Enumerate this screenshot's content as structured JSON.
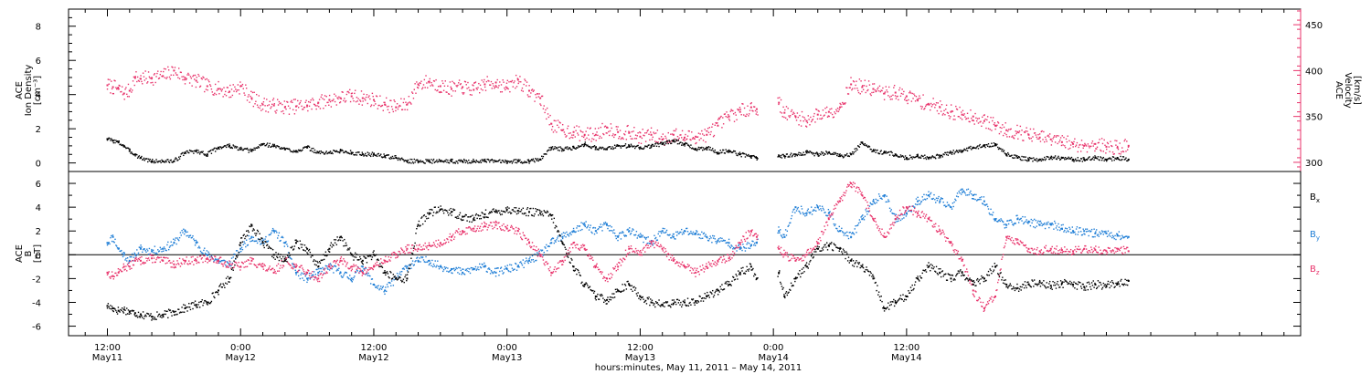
{
  "chart_data": [
    {
      "type": "scatter",
      "panel": "top",
      "ylabel_lines": [
        "ACE",
        "Ion Density",
        "[cm⁻³]"
      ],
      "ylim": [
        -0.5,
        9.0
      ],
      "yticks": [
        0,
        2,
        4,
        6,
        8
      ],
      "right_axis": {
        "ylabel_lines": [
          "ACE",
          "Velocity",
          "[km/s]"
        ],
        "ylim": [
          290,
          467
        ],
        "yticks": [
          300,
          350,
          400,
          450
        ],
        "color": "#e8336b"
      },
      "series": [
        {
          "name": "Ion Density",
          "axis": "left",
          "color": "#000000",
          "x": [
            0.0,
            0.5,
            1.0,
            1.5,
            2.0,
            2.5,
            3.0,
            4.0,
            5.0,
            6.0,
            7.0,
            8.0,
            9.0,
            10.0,
            11.0,
            12.0,
            13.0,
            14.0,
            15.0,
            16.0,
            17.0,
            18.0,
            19.0,
            20.0,
            21.0,
            22.0,
            23.0,
            24.0,
            25.0,
            26.0,
            27.0,
            28.0,
            29.0,
            30.0,
            31.0,
            32.0,
            33.0,
            34.0,
            35.0,
            36.0,
            37.0,
            38.0,
            39.0,
            40.0,
            41.0,
            42.0,
            43.0,
            44.0,
            45.0,
            46.0,
            47.0,
            48.0,
            49.0,
            50.0,
            51.0,
            52.0,
            53.0,
            54.0,
            55.0,
            56.0,
            57.0,
            58.0,
            58.5,
            60.5,
            61.0,
            62.0,
            63.0,
            64.0,
            65.0,
            66.0,
            67.0,
            68.0,
            69.0,
            70.0,
            71.0,
            72.0,
            73.0,
            74.0,
            75.0,
            76.0,
            77.0,
            78.0,
            79.0,
            80.0,
            81.0,
            82.0,
            83.0,
            84.0,
            85.0,
            86.0,
            87.0,
            88.0,
            89.0,
            90.0,
            91.0,
            92.0
          ],
          "y": [
            1.4,
            1.3,
            1.2,
            1.0,
            0.7,
            0.5,
            0.3,
            0.1,
            0.1,
            0.1,
            0.6,
            0.7,
            0.5,
            0.9,
            1.0,
            0.8,
            0.7,
            1.1,
            1.0,
            0.8,
            0.7,
            0.9,
            0.6,
            0.6,
            0.7,
            0.6,
            0.5,
            0.5,
            0.4,
            0.3,
            0.1,
            0.1,
            0.1,
            0.1,
            0.1,
            0.1,
            0.1,
            0.1,
            0.1,
            0.1,
            0.1,
            0.1,
            0.2,
            0.9,
            0.8,
            0.9,
            1.1,
            0.9,
            0.8,
            1.0,
            1.0,
            0.9,
            1.0,
            1.1,
            1.3,
            1.1,
            0.8,
            0.9,
            0.6,
            0.7,
            0.5,
            0.4,
            0.3,
            0.4,
            0.4,
            0.5,
            0.6,
            0.5,
            0.6,
            0.4,
            0.5,
            1.2,
            0.7,
            0.6,
            0.5,
            0.3,
            0.4,
            0.3,
            0.4,
            0.6,
            0.7,
            0.9,
            1.0,
            1.1,
            0.5,
            0.3,
            0.2,
            0.2,
            0.3,
            0.3,
            0.2,
            0.2,
            0.3,
            0.2,
            0.3,
            0.2
          ]
        },
        {
          "name": "Velocity",
          "axis": "right",
          "color": "#e8336b",
          "x": [
            0.0,
            0.5,
            1.0,
            1.5,
            2.0,
            2.5,
            3.0,
            4.0,
            5.0,
            6.0,
            7.0,
            8.0,
            9.0,
            10.0,
            11.0,
            12.0,
            13.0,
            14.0,
            15.0,
            16.0,
            17.0,
            18.0,
            19.0,
            20.0,
            21.0,
            22.0,
            23.0,
            24.0,
            25.0,
            26.0,
            27.0,
            28.0,
            29.0,
            30.0,
            31.0,
            32.0,
            33.0,
            34.0,
            35.0,
            36.0,
            37.0,
            38.0,
            39.0,
            40.0,
            41.0,
            42.0,
            43.0,
            44.0,
            45.0,
            46.0,
            47.0,
            48.0,
            49.0,
            50.0,
            51.0,
            52.0,
            53.0,
            54.0,
            55.0,
            56.0,
            57.0,
            58.0,
            58.5,
            60.5,
            61.0,
            62.0,
            63.0,
            64.0,
            65.0,
            66.0,
            67.0,
            68.0,
            69.0,
            70.0,
            71.0,
            72.0,
            73.0,
            74.0,
            75.0,
            76.0,
            77.0,
            78.0,
            79.0,
            80.0,
            81.0,
            82.0,
            83.0,
            84.0,
            85.0,
            86.0,
            87.0,
            88.0,
            89.0,
            90.0,
            91.0,
            92.0
          ],
          "y": [
            384,
            382,
            380,
            375,
            378,
            392,
            391,
            392,
            394,
            400,
            392,
            389,
            383,
            380,
            377,
            383,
            370,
            363,
            362,
            360,
            361,
            362,
            365,
            368,
            370,
            372,
            370,
            368,
            363,
            360,
            363,
            385,
            388,
            383,
            380,
            382,
            379,
            385,
            387,
            381,
            390,
            378,
            370,
            342,
            335,
            333,
            330,
            330,
            338,
            333,
            332,
            328,
            330,
            325,
            330,
            327,
            328,
            330,
            340,
            350,
            355,
            360,
            358,
            365,
            354,
            350,
            345,
            352,
            355,
            360,
            385,
            382,
            380,
            375,
            376,
            372,
            368,
            363,
            360,
            355,
            352,
            350,
            345,
            340,
            335,
            333,
            330,
            327,
            325,
            322,
            320,
            318,
            320,
            317,
            316,
            318
          ]
        }
      ]
    },
    {
      "type": "scatter",
      "panel": "bottom",
      "ylabel_lines": [
        "ACE",
        "B",
        "[nT]"
      ],
      "ylim": [
        -6.8,
        7.0
      ],
      "yticks": [
        -6,
        -4,
        -2,
        0,
        2,
        4,
        6
      ],
      "zero_line": true,
      "series": [
        {
          "name": "Bx",
          "color": "#000000",
          "x": [
            0.0,
            0.5,
            1.0,
            1.5,
            2.0,
            2.5,
            3.0,
            4.0,
            5.0,
            6.0,
            7.0,
            8.0,
            9.0,
            10.0,
            11.0,
            12.0,
            13.0,
            14.0,
            15.0,
            16.0,
            17.0,
            18.0,
            19.0,
            20.0,
            21.0,
            22.0,
            23.0,
            24.0,
            25.0,
            26.0,
            27.0,
            28.0,
            29.0,
            30.0,
            31.0,
            32.0,
            33.0,
            34.0,
            35.0,
            36.0,
            37.0,
            38.0,
            39.0,
            40.0,
            41.0,
            42.0,
            43.0,
            44.0,
            45.0,
            46.0,
            47.0,
            48.0,
            49.0,
            50.0,
            51.0,
            52.0,
            53.0,
            54.0,
            55.0,
            56.0,
            57.0,
            58.0,
            58.5,
            60.5,
            61.0,
            62.0,
            63.0,
            64.0,
            65.0,
            66.0,
            67.0,
            68.0,
            69.0,
            70.0,
            71.0,
            72.0,
            73.0,
            74.0,
            75.0,
            76.0,
            77.0,
            78.0,
            79.0,
            80.0,
            81.0,
            82.0,
            83.0,
            84.0,
            85.0,
            86.0,
            87.0,
            88.0,
            89.0,
            90.0,
            91.0,
            92.0
          ],
          "y": [
            -4.3,
            -4.5,
            -4.7,
            -4.6,
            -4.8,
            -4.9,
            -5.0,
            -5.2,
            -5.1,
            -4.8,
            -4.5,
            -4.2,
            -4.0,
            -3.0,
            -2.0,
            1.0,
            2.5,
            1.0,
            0.0,
            -0.5,
            1.0,
            0.5,
            -1.0,
            0.5,
            1.5,
            0.0,
            -0.5,
            0.0,
            -1.5,
            -2.0,
            -2.0,
            2.5,
            3.5,
            3.8,
            3.6,
            3.2,
            3.0,
            3.4,
            3.6,
            3.8,
            3.7,
            3.6,
            3.5,
            3.3,
            1.0,
            -1.0,
            -2.5,
            -3.5,
            -3.8,
            -3.0,
            -2.5,
            -3.5,
            -4.0,
            -4.2,
            -4.1,
            -4.0,
            -3.9,
            -3.5,
            -3.0,
            -2.5,
            -1.5,
            -1.0,
            -2.0,
            -1.5,
            -3.5,
            -2.0,
            -1.0,
            0.5,
            0.8,
            0.5,
            -0.5,
            -1.0,
            -2.0,
            -4.5,
            -4.0,
            -3.5,
            -2.0,
            -1.0,
            -1.5,
            -2.0,
            -1.5,
            -2.5,
            -2.0,
            -1.0,
            -2.5,
            -2.8,
            -2.5,
            -2.3,
            -2.6,
            -2.4,
            -2.5,
            -2.7,
            -2.5,
            -2.6,
            -2.4,
            -2.2
          ]
        },
        {
          "name": "By",
          "color": "#1f7ed6",
          "x": [
            0.0,
            0.5,
            1.0,
            1.5,
            2.0,
            2.5,
            3.0,
            4.0,
            5.0,
            6.0,
            7.0,
            8.0,
            9.0,
            10.0,
            11.0,
            12.0,
            13.0,
            14.0,
            15.0,
            16.0,
            17.0,
            18.0,
            19.0,
            20.0,
            21.0,
            22.0,
            23.0,
            24.0,
            25.0,
            26.0,
            27.0,
            28.0,
            29.0,
            30.0,
            31.0,
            32.0,
            33.0,
            34.0,
            35.0,
            36.0,
            37.0,
            38.0,
            39.0,
            40.0,
            41.0,
            42.0,
            43.0,
            44.0,
            45.0,
            46.0,
            47.0,
            48.0,
            49.0,
            50.0,
            51.0,
            52.0,
            53.0,
            54.0,
            55.0,
            56.0,
            57.0,
            58.0,
            58.5,
            60.5,
            61.0,
            62.0,
            63.0,
            64.0,
            65.0,
            66.0,
            67.0,
            68.0,
            69.0,
            70.0,
            71.0,
            72.0,
            73.0,
            74.0,
            75.0,
            76.0,
            77.0,
            78.0,
            79.0,
            80.0,
            81.0,
            82.0,
            83.0,
            84.0,
            85.0,
            86.0,
            87.0,
            88.0,
            89.0,
            90.0,
            91.0,
            92.0
          ],
          "y": [
            1.0,
            1.5,
            0.5,
            0.0,
            -0.5,
            0.0,
            0.5,
            0.3,
            0.5,
            1.0,
            2.0,
            1.0,
            0.0,
            -0.5,
            -0.8,
            0.5,
            1.5,
            1.0,
            2.0,
            1.0,
            -1.5,
            -2.0,
            -1.5,
            -1.0,
            -1.5,
            -2.0,
            -1.0,
            -2.5,
            -3.0,
            -2.0,
            -1.0,
            -0.5,
            -0.5,
            -1.0,
            -1.2,
            -1.5,
            -1.2,
            -1.0,
            -1.5,
            -1.2,
            -1.0,
            -0.5,
            0.0,
            1.0,
            1.5,
            2.0,
            2.5,
            2.0,
            2.5,
            1.5,
            2.0,
            1.5,
            1.0,
            2.0,
            1.5,
            2.0,
            1.8,
            1.5,
            1.2,
            1.0,
            0.5,
            0.8,
            1.0,
            2.0,
            1.5,
            4.0,
            3.5,
            4.0,
            3.5,
            2.0,
            1.5,
            3.0,
            4.5,
            5.0,
            3.0,
            3.5,
            4.5,
            5.0,
            4.5,
            4.0,
            5.5,
            5.0,
            4.5,
            3.0,
            2.5,
            3.0,
            2.8,
            2.5,
            2.6,
            2.2,
            2.0,
            2.0,
            1.8,
            1.8,
            1.6,
            1.5
          ]
        },
        {
          "name": "Bz",
          "color": "#e8336b",
          "x": [
            0.0,
            0.5,
            1.0,
            1.5,
            2.0,
            2.5,
            3.0,
            4.0,
            5.0,
            6.0,
            7.0,
            8.0,
            9.0,
            10.0,
            11.0,
            12.0,
            13.0,
            14.0,
            15.0,
            16.0,
            17.0,
            18.0,
            19.0,
            20.0,
            21.0,
            22.0,
            23.0,
            24.0,
            25.0,
            26.0,
            27.0,
            28.0,
            29.0,
            30.0,
            31.0,
            32.0,
            33.0,
            34.0,
            35.0,
            36.0,
            37.0,
            38.0,
            39.0,
            40.0,
            41.0,
            42.0,
            43.0,
            44.0,
            45.0,
            46.0,
            47.0,
            48.0,
            49.0,
            50.0,
            51.0,
            52.0,
            53.0,
            54.0,
            55.0,
            56.0,
            57.0,
            58.0,
            58.5,
            60.5,
            61.0,
            62.0,
            63.0,
            64.0,
            65.0,
            66.0,
            67.0,
            68.0,
            69.0,
            70.0,
            71.0,
            72.0,
            73.0,
            74.0,
            75.0,
            76.0,
            77.0,
            78.0,
            79.0,
            80.0,
            81.0,
            82.0,
            83.0,
            84.0,
            85.0,
            86.0,
            87.0,
            88.0,
            89.0,
            90.0,
            91.0,
            92.0
          ],
          "y": [
            -1.5,
            -1.8,
            -1.5,
            -1.0,
            -1.0,
            -0.5,
            -0.5,
            -0.3,
            -0.5,
            -0.8,
            -0.5,
            -0.5,
            -0.3,
            -0.5,
            -0.8,
            -1.0,
            -0.5,
            -1.0,
            -1.5,
            -0.5,
            -1.0,
            -1.5,
            -2.0,
            -1.0,
            -0.5,
            -1.0,
            -1.5,
            -1.0,
            -0.5,
            0.0,
            0.5,
            0.5,
            0.8,
            1.0,
            1.5,
            2.0,
            2.2,
            2.4,
            2.5,
            2.2,
            2.0,
            1.0,
            0.0,
            -1.5,
            -0.5,
            1.0,
            0.5,
            -1.0,
            -2.0,
            -1.0,
            0.5,
            0.0,
            1.0,
            0.5,
            -0.5,
            -1.0,
            -1.5,
            -1.0,
            -0.5,
            -0.3,
            1.0,
            2.0,
            1.5,
            0.5,
            0.0,
            -0.5,
            0.0,
            1.0,
            3.0,
            4.5,
            6.0,
            5.0,
            3.0,
            1.5,
            3.0,
            4.0,
            3.5,
            3.0,
            2.0,
            1.0,
            -0.5,
            -3.0,
            -4.5,
            -3.5,
            1.5,
            1.0,
            0.5,
            0.3,
            0.5,
            0.4,
            0.3,
            0.5,
            0.4,
            0.3,
            0.5,
            0.3
          ]
        }
      ],
      "legend": [
        {
          "label": "B",
          "sub": "x",
          "color": "#000000"
        },
        {
          "label": "B",
          "sub": "y",
          "color": "#1f7ed6"
        },
        {
          "label": "B",
          "sub": "z",
          "color": "#e8336b"
        }
      ]
    }
  ],
  "x_axis": {
    "xlim_hours": [
      -3.5,
      107.5
    ],
    "ticks": [
      {
        "hour": 0,
        "time": "12:00",
        "date": "May11"
      },
      {
        "hour": 12,
        "time": "0:00",
        "date": "May12"
      },
      {
        "hour": 24,
        "time": "12:00",
        "date": "May12"
      },
      {
        "hour": 36,
        "time": "0:00",
        "date": "May13"
      },
      {
        "hour": 48,
        "time": "12:00",
        "date": "May13"
      },
      {
        "hour": 60,
        "time": "0:00",
        "date": "May14"
      },
      {
        "hour": 72,
        "time": "12:00",
        "date": "May14"
      }
    ],
    "xlabel": "hours:minutes, May 11, 2011 – May 14, 2011"
  }
}
